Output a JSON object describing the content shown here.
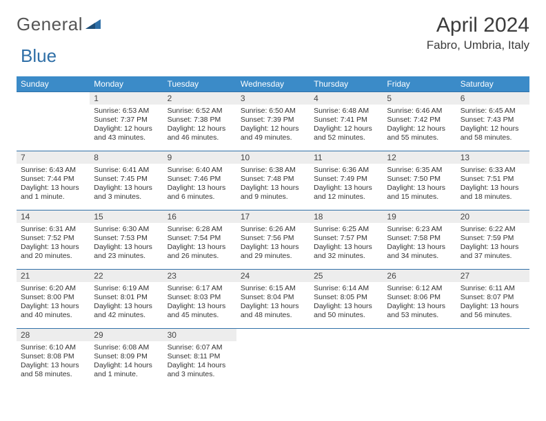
{
  "logo": {
    "part1": "General",
    "part2": "Blue"
  },
  "header": {
    "month_title": "April 2024",
    "location": "Fabro, Umbria, Italy"
  },
  "colors": {
    "header_bg": "#3b8bc8",
    "header_fg": "#ffffff",
    "daynum_bg": "#ededed",
    "row_border": "#2f6fa7",
    "logo_gray": "#555555",
    "logo_blue": "#2f6fa7",
    "text": "#333333"
  },
  "days_of_week": [
    "Sunday",
    "Monday",
    "Tuesday",
    "Wednesday",
    "Thursday",
    "Friday",
    "Saturday"
  ],
  "calendar": {
    "type": "calendar-table",
    "columns": 7,
    "rows_count": 5,
    "fonts": {
      "header_size": 12,
      "daynum_size": 12,
      "body_size": 10.5
    },
    "weeks": [
      [
        {
          "day": "",
          "sunrise": "",
          "sunset": "",
          "daylight": ""
        },
        {
          "day": "1",
          "sunrise": "Sunrise: 6:53 AM",
          "sunset": "Sunset: 7:37 PM",
          "daylight": "Daylight: 12 hours and 43 minutes."
        },
        {
          "day": "2",
          "sunrise": "Sunrise: 6:52 AM",
          "sunset": "Sunset: 7:38 PM",
          "daylight": "Daylight: 12 hours and 46 minutes."
        },
        {
          "day": "3",
          "sunrise": "Sunrise: 6:50 AM",
          "sunset": "Sunset: 7:39 PM",
          "daylight": "Daylight: 12 hours and 49 minutes."
        },
        {
          "day": "4",
          "sunrise": "Sunrise: 6:48 AM",
          "sunset": "Sunset: 7:41 PM",
          "daylight": "Daylight: 12 hours and 52 minutes."
        },
        {
          "day": "5",
          "sunrise": "Sunrise: 6:46 AM",
          "sunset": "Sunset: 7:42 PM",
          "daylight": "Daylight: 12 hours and 55 minutes."
        },
        {
          "day": "6",
          "sunrise": "Sunrise: 6:45 AM",
          "sunset": "Sunset: 7:43 PM",
          "daylight": "Daylight: 12 hours and 58 minutes."
        }
      ],
      [
        {
          "day": "7",
          "sunrise": "Sunrise: 6:43 AM",
          "sunset": "Sunset: 7:44 PM",
          "daylight": "Daylight: 13 hours and 1 minute."
        },
        {
          "day": "8",
          "sunrise": "Sunrise: 6:41 AM",
          "sunset": "Sunset: 7:45 PM",
          "daylight": "Daylight: 13 hours and 3 minutes."
        },
        {
          "day": "9",
          "sunrise": "Sunrise: 6:40 AM",
          "sunset": "Sunset: 7:46 PM",
          "daylight": "Daylight: 13 hours and 6 minutes."
        },
        {
          "day": "10",
          "sunrise": "Sunrise: 6:38 AM",
          "sunset": "Sunset: 7:48 PM",
          "daylight": "Daylight: 13 hours and 9 minutes."
        },
        {
          "day": "11",
          "sunrise": "Sunrise: 6:36 AM",
          "sunset": "Sunset: 7:49 PM",
          "daylight": "Daylight: 13 hours and 12 minutes."
        },
        {
          "day": "12",
          "sunrise": "Sunrise: 6:35 AM",
          "sunset": "Sunset: 7:50 PM",
          "daylight": "Daylight: 13 hours and 15 minutes."
        },
        {
          "day": "13",
          "sunrise": "Sunrise: 6:33 AM",
          "sunset": "Sunset: 7:51 PM",
          "daylight": "Daylight: 13 hours and 18 minutes."
        }
      ],
      [
        {
          "day": "14",
          "sunrise": "Sunrise: 6:31 AM",
          "sunset": "Sunset: 7:52 PM",
          "daylight": "Daylight: 13 hours and 20 minutes."
        },
        {
          "day": "15",
          "sunrise": "Sunrise: 6:30 AM",
          "sunset": "Sunset: 7:53 PM",
          "daylight": "Daylight: 13 hours and 23 minutes."
        },
        {
          "day": "16",
          "sunrise": "Sunrise: 6:28 AM",
          "sunset": "Sunset: 7:54 PM",
          "daylight": "Daylight: 13 hours and 26 minutes."
        },
        {
          "day": "17",
          "sunrise": "Sunrise: 6:26 AM",
          "sunset": "Sunset: 7:56 PM",
          "daylight": "Daylight: 13 hours and 29 minutes."
        },
        {
          "day": "18",
          "sunrise": "Sunrise: 6:25 AM",
          "sunset": "Sunset: 7:57 PM",
          "daylight": "Daylight: 13 hours and 32 minutes."
        },
        {
          "day": "19",
          "sunrise": "Sunrise: 6:23 AM",
          "sunset": "Sunset: 7:58 PM",
          "daylight": "Daylight: 13 hours and 34 minutes."
        },
        {
          "day": "20",
          "sunrise": "Sunrise: 6:22 AM",
          "sunset": "Sunset: 7:59 PM",
          "daylight": "Daylight: 13 hours and 37 minutes."
        }
      ],
      [
        {
          "day": "21",
          "sunrise": "Sunrise: 6:20 AM",
          "sunset": "Sunset: 8:00 PM",
          "daylight": "Daylight: 13 hours and 40 minutes."
        },
        {
          "day": "22",
          "sunrise": "Sunrise: 6:19 AM",
          "sunset": "Sunset: 8:01 PM",
          "daylight": "Daylight: 13 hours and 42 minutes."
        },
        {
          "day": "23",
          "sunrise": "Sunrise: 6:17 AM",
          "sunset": "Sunset: 8:03 PM",
          "daylight": "Daylight: 13 hours and 45 minutes."
        },
        {
          "day": "24",
          "sunrise": "Sunrise: 6:15 AM",
          "sunset": "Sunset: 8:04 PM",
          "daylight": "Daylight: 13 hours and 48 minutes."
        },
        {
          "day": "25",
          "sunrise": "Sunrise: 6:14 AM",
          "sunset": "Sunset: 8:05 PM",
          "daylight": "Daylight: 13 hours and 50 minutes."
        },
        {
          "day": "26",
          "sunrise": "Sunrise: 6:12 AM",
          "sunset": "Sunset: 8:06 PM",
          "daylight": "Daylight: 13 hours and 53 minutes."
        },
        {
          "day": "27",
          "sunrise": "Sunrise: 6:11 AM",
          "sunset": "Sunset: 8:07 PM",
          "daylight": "Daylight: 13 hours and 56 minutes."
        }
      ],
      [
        {
          "day": "28",
          "sunrise": "Sunrise: 6:10 AM",
          "sunset": "Sunset: 8:08 PM",
          "daylight": "Daylight: 13 hours and 58 minutes."
        },
        {
          "day": "29",
          "sunrise": "Sunrise: 6:08 AM",
          "sunset": "Sunset: 8:09 PM",
          "daylight": "Daylight: 14 hours and 1 minute."
        },
        {
          "day": "30",
          "sunrise": "Sunrise: 6:07 AM",
          "sunset": "Sunset: 8:11 PM",
          "daylight": "Daylight: 14 hours and 3 minutes."
        },
        {
          "day": "",
          "sunrise": "",
          "sunset": "",
          "daylight": ""
        },
        {
          "day": "",
          "sunrise": "",
          "sunset": "",
          "daylight": ""
        },
        {
          "day": "",
          "sunrise": "",
          "sunset": "",
          "daylight": ""
        },
        {
          "day": "",
          "sunrise": "",
          "sunset": "",
          "daylight": ""
        }
      ]
    ]
  }
}
